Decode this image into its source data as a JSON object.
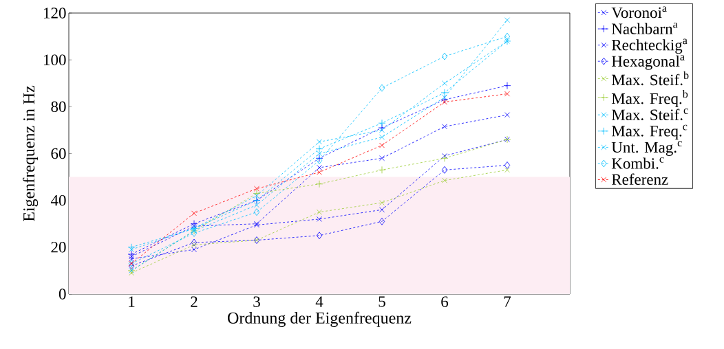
{
  "chart_data": {
    "type": "line",
    "xlabel": "Ordnung der Eigenfrequenz",
    "ylabel": "Eigenfrequenz in Hz",
    "x": [
      1,
      2,
      3,
      4,
      5,
      6,
      7
    ],
    "xlim": [
      0,
      8
    ],
    "xticks": [
      1,
      2,
      3,
      4,
      5,
      6,
      7
    ],
    "ylim": [
      0,
      120
    ],
    "yticks": [
      0,
      20,
      40,
      60,
      80,
      100,
      120
    ],
    "grid": false,
    "legend": "right",
    "line_style": "dashed",
    "bands": [
      {
        "axis": "y",
        "from": 0,
        "to": 50,
        "color": "#fdedf3"
      }
    ],
    "series": [
      {
        "name": "Voronoi$^{a}$",
        "color": "#0000ff",
        "marker": "cross",
        "values": [
          16,
          29,
          30,
          54,
          58,
          71.5,
          76.5
        ]
      },
      {
        "name": "Nachbarn$^{a}$",
        "color": "#0000ff",
        "marker": "plus",
        "values": [
          17,
          30,
          40,
          58,
          71,
          83,
          89
        ]
      },
      {
        "name": "Rechteckig$^{a}$",
        "color": "#0000ff",
        "marker": "cross",
        "values": [
          15,
          19,
          29.5,
          32,
          36,
          59,
          66
        ]
      },
      {
        "name": "Hexagonal$^{a}$",
        "color": "#0000ff",
        "marker": "diamond",
        "values": [
          12,
          22,
          23,
          25,
          31,
          53,
          55
        ]
      },
      {
        "name": "Max. Steif.$^{b}$",
        "color": "#9acd32",
        "marker": "cross",
        "values": [
          9,
          21,
          23,
          35,
          39,
          48.5,
          53
        ]
      },
      {
        "name": "Max. Freq.$^{b}$",
        "color": "#9acd32",
        "marker": "plus",
        "values": [
          10,
          27,
          43,
          47,
          53,
          58,
          66
        ]
      },
      {
        "name": "Max. Steif.$^{c}$",
        "color": "#00bfff",
        "marker": "cross",
        "values": [
          19,
          28,
          42,
          65,
          70,
          90,
          108
        ]
      },
      {
        "name": "Max. Freq.$^{c}$",
        "color": "#00bfff",
        "marker": "plus",
        "values": [
          20,
          28,
          40,
          62,
          73,
          86,
          108
        ]
      },
      {
        "name": "Unt. Mag.$^{c}$",
        "color": "#00bfff",
        "marker": "cross",
        "values": [
          10,
          27,
          38,
          60,
          67,
          84,
          117
        ]
      },
      {
        "name": "Kombi.$^{c}$",
        "color": "#00bfff",
        "marker": "diamond",
        "values": [
          13,
          26,
          35,
          57,
          88,
          101.5,
          110
        ]
      },
      {
        "name": "Referenz",
        "color": "#ff0000",
        "marker": "cross",
        "values": [
          13,
          34.5,
          45,
          52,
          63.5,
          82,
          85.5
        ]
      }
    ]
  }
}
